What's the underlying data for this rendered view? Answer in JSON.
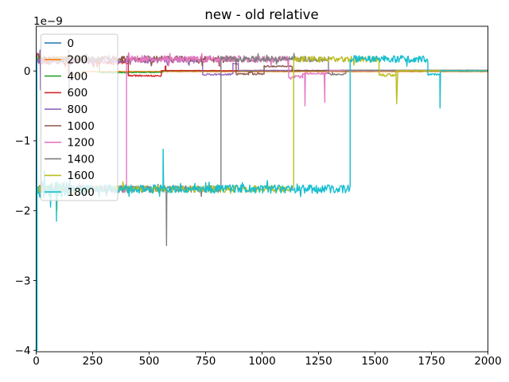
{
  "chart_data": {
    "type": "line",
    "title": "new - old relative",
    "xlabel": "",
    "ylabel": "",
    "y_offset_text": "1e−9",
    "y_unit": "1e-9",
    "xlim": [
      0,
      2000
    ],
    "ylim": [
      -4.02,
      0.64
    ],
    "xticks": [
      0,
      250,
      500,
      750,
      1000,
      1250,
      1500,
      1750,
      2000
    ],
    "yticks": [
      0,
      -1,
      -2,
      -3,
      -4
    ],
    "grid": false,
    "legend_position": "upper left",
    "legend_labels": [
      "0",
      "200",
      "400",
      "600",
      "800",
      "1000",
      "1200",
      "1400",
      "1600",
      "1800"
    ],
    "series_note": "segments = [x_start, x_end, level_in_1e-9, noise_amplitude]; spikes = [x, y_tip_in_1e-9]",
    "series": [
      {
        "name": "0",
        "color": "#1f77b4",
        "segments": [
          [
            0,
            1.5,
            0.15,
            0.02
          ],
          [
            1.5,
            3,
            -4,
            0
          ],
          [
            3,
            8,
            0.15,
            0.02
          ]
        ],
        "spikes": []
      },
      {
        "name": "200",
        "color": "#ff7f0e",
        "segments": [
          [
            0,
            140,
            0.17,
            0.045
          ],
          [
            140,
            205,
            -0.06,
            0.015
          ],
          [
            205,
            2000,
            -0.008,
            0.003
          ]
        ],
        "spikes": []
      },
      {
        "name": "400",
        "color": "#2ca02c",
        "segments": [
          [
            0,
            280,
            0.16,
            0.04
          ],
          [
            280,
            410,
            -0.025,
            0.008
          ],
          [
            410,
            560,
            -0.02,
            0.005
          ],
          [
            560,
            2000,
            0.001,
            0.001
          ]
        ],
        "spikes": []
      },
      {
        "name": "600",
        "color": "#d62728",
        "segments": [
          [
            0,
            408,
            0.13,
            0.035
          ],
          [
            408,
            554,
            -0.068,
            0.012
          ],
          [
            554,
            571,
            0.005,
            0.003
          ],
          [
            571,
            574,
            0.07,
            0.002
          ],
          [
            574,
            2000,
            0.006,
            0.002
          ]
        ],
        "spikes": []
      },
      {
        "name": "800",
        "color": "#9467bd",
        "segments": [
          [
            0,
            737,
            0.15,
            0.035
          ],
          [
            737,
            871,
            -0.05,
            0.012
          ],
          [
            871,
            895,
            0.1,
            0.012
          ],
          [
            895,
            2000,
            0.008,
            0.002
          ]
        ],
        "spikes": [
          [
            17,
            0.3
          ],
          [
            19,
            -0.27
          ],
          [
            144,
            0.3
          ],
          [
            146,
            -0.27
          ]
        ]
      },
      {
        "name": "1000",
        "color": "#8c564b",
        "segments": [
          [
            0,
            885,
            0.17,
            0.045
          ],
          [
            885,
            940,
            -0.046,
            0.012
          ],
          [
            940,
            958,
            -0.02,
            0.008
          ],
          [
            958,
            1009,
            -0.046,
            0.012
          ],
          [
            1009,
            1133,
            0.068,
            0.01
          ],
          [
            1133,
            2000,
            0.006,
            0.002
          ]
        ],
        "spikes": []
      },
      {
        "name": "1200",
        "color": "#e377c2",
        "segments": [
          [
            0,
            400,
            -1.69,
            0.05
          ],
          [
            400,
            1118,
            0.17,
            0.05
          ],
          [
            1118,
            1180,
            -0.08,
            0.02
          ],
          [
            1180,
            1290,
            -0.035,
            0.012
          ],
          [
            1290,
            2000,
            0.004,
            0.002
          ]
        ],
        "spikes": [
          [
            1190,
            -0.5
          ],
          [
            1278,
            -0.45
          ]
        ]
      },
      {
        "name": "1400",
        "color": "#7f7f7f",
        "segments": [
          [
            0,
            818,
            -1.69,
            0.05
          ],
          [
            818,
            1294,
            0.17,
            0.04
          ],
          [
            1294,
            1371,
            -0.046,
            0.012
          ],
          [
            1371,
            2000,
            0.01,
            0.002
          ]
        ],
        "spikes": [
          [
            577,
            -2.5
          ]
        ]
      },
      {
        "name": "1600",
        "color": "#bcbd22",
        "segments": [
          [
            0,
            150,
            -1.69,
            0.09
          ],
          [
            150,
            1140,
            -1.69,
            0.05
          ],
          [
            1140,
            1518,
            0.17,
            0.04
          ],
          [
            1518,
            1593,
            -0.06,
            0.02
          ],
          [
            1593,
            2000,
            0.005,
            0.002
          ]
        ],
        "spikes": [
          [
            92,
            -2.0
          ],
          [
            1596,
            -0.47
          ]
        ]
      },
      {
        "name": "1800",
        "color": "#17becf",
        "segments": [
          [
            0,
            2,
            0.2,
            0
          ],
          [
            2,
            4,
            -4,
            0
          ],
          [
            4,
            150,
            -1.69,
            0.12
          ],
          [
            150,
            1390,
            -1.69,
            0.06
          ],
          [
            1390,
            1734,
            0.17,
            0.05
          ],
          [
            1734,
            1790,
            -0.05,
            0.015
          ],
          [
            1790,
            2000,
            0.002,
            0.001
          ]
        ],
        "spikes": [
          [
            90,
            -2.15
          ],
          [
            562,
            -1.12
          ],
          [
            1788,
            -0.53
          ]
        ]
      }
    ],
    "style": {
      "spine_color": "#000000",
      "tick_color": "#000000",
      "legend_face": "rgba(255,255,255,0.8)",
      "legend_edge": "#cccccc",
      "background": "#ffffff"
    }
  }
}
